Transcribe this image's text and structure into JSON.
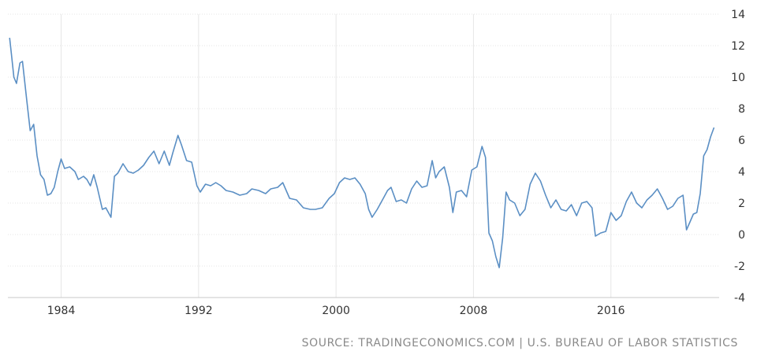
{
  "chart_data": {
    "type": "line",
    "title": "",
    "xlabel": "",
    "ylabel": "",
    "xlim": [
      1980.9,
      2022.3
    ],
    "ylim": [
      -4,
      14
    ],
    "x_ticks": [
      1984,
      1992,
      2000,
      2008,
      2016
    ],
    "x_tick_labels": [
      "1984",
      "1992",
      "2000",
      "2008",
      "2016"
    ],
    "y_ticks": [
      14,
      12,
      10,
      8,
      6,
      4,
      2,
      0,
      -2,
      -4
    ],
    "y_tick_labels": [
      "14",
      "12",
      "10",
      "8",
      "6",
      "4",
      "2",
      "0",
      "-2",
      "-4"
    ],
    "grid": true,
    "legend": "none",
    "line_color": "#5b8fc4",
    "series": [
      {
        "x": [
          1981.0,
          1981.1,
          1981.25,
          1981.4,
          1981.6,
          1981.75,
          1982.0,
          1982.2,
          1982.4,
          1982.6,
          1982.8,
          1983.0,
          1983.2,
          1983.4,
          1983.6,
          1983.8,
          1984.0,
          1984.2,
          1984.5,
          1984.8,
          1985.0,
          1985.3,
          1985.5,
          1985.7,
          1985.9,
          1986.1,
          1986.4,
          1986.6,
          1986.9,
          1987.1,
          1987.3,
          1987.6,
          1987.9,
          1988.2,
          1988.5,
          1988.8,
          1989.1,
          1989.4,
          1989.7,
          1990.0,
          1990.3,
          1990.5,
          1990.8,
          1991.0,
          1991.3,
          1991.6,
          1991.9,
          1992.1,
          1992.4,
          1992.7,
          1993.0,
          1993.3,
          1993.6,
          1994.0,
          1994.4,
          1994.8,
          1995.1,
          1995.5,
          1995.9,
          1996.2,
          1996.6,
          1996.9,
          1997.3,
          1997.7,
          1998.1,
          1998.5,
          1998.8,
          1999.2,
          1999.6,
          1999.9,
          2000.2,
          2000.5,
          2000.8,
          2001.1,
          2001.4,
          2001.7,
          2001.9,
          2002.1,
          2002.4,
          2002.7,
          2003.0,
          2003.2,
          2003.5,
          2003.8,
          2004.1,
          2004.4,
          2004.7,
          2005.0,
          2005.3,
          2005.6,
          2005.8,
          2006.0,
          2006.3,
          2006.6,
          2006.8,
          2007.0,
          2007.3,
          2007.6,
          2007.9,
          2008.2,
          2008.5,
          2008.7,
          2008.9,
          2009.1,
          2009.3,
          2009.5,
          2009.7,
          2009.9,
          2010.1,
          2010.4,
          2010.7,
          2011.0,
          2011.3,
          2011.6,
          2011.9,
          2012.2,
          2012.5,
          2012.8,
          2013.1,
          2013.4,
          2013.7,
          2014.0,
          2014.3,
          2014.6,
          2014.9,
          2015.1,
          2015.4,
          2015.7,
          2016.0,
          2016.3,
          2016.6,
          2016.9,
          2017.2,
          2017.5,
          2017.8,
          2018.1,
          2018.4,
          2018.7,
          2019.0,
          2019.3,
          2019.6,
          2019.9,
          2020.2,
          2020.4,
          2020.6,
          2020.8,
          2021.0,
          2021.2,
          2021.4,
          2021.6,
          2021.8,
          2022.0
        ],
        "values": [
          12.5,
          11.5,
          10.0,
          9.6,
          10.9,
          11.0,
          8.5,
          6.6,
          7.0,
          5.0,
          3.8,
          3.5,
          2.5,
          2.6,
          3.0,
          4.0,
          4.8,
          4.2,
          4.3,
          4.0,
          3.5,
          3.7,
          3.5,
          3.1,
          3.8,
          3.0,
          1.6,
          1.7,
          1.1,
          3.7,
          3.9,
          4.5,
          4.0,
          3.9,
          4.1,
          4.4,
          4.9,
          5.3,
          4.5,
          5.3,
          4.4,
          5.2,
          6.3,
          5.7,
          4.7,
          4.6,
          3.1,
          2.7,
          3.2,
          3.1,
          3.3,
          3.1,
          2.8,
          2.7,
          2.5,
          2.6,
          2.9,
          2.8,
          2.6,
          2.9,
          3.0,
          3.3,
          2.3,
          2.2,
          1.7,
          1.6,
          1.6,
          1.7,
          2.3,
          2.6,
          3.3,
          3.6,
          3.5,
          3.6,
          3.2,
          2.6,
          1.6,
          1.1,
          1.6,
          2.2,
          2.8,
          3.0,
          2.1,
          2.2,
          2.0,
          2.9,
          3.4,
          3.0,
          3.1,
          4.7,
          3.6,
          4.0,
          4.3,
          3.0,
          1.4,
          2.7,
          2.8,
          2.4,
          4.1,
          4.3,
          5.6,
          4.9,
          0.1,
          -0.4,
          -1.4,
          -2.1,
          -0.2,
          2.7,
          2.2,
          2.0,
          1.2,
          1.6,
          3.2,
          3.9,
          3.4,
          2.5,
          1.7,
          2.2,
          1.6,
          1.5,
          1.9,
          1.2,
          2.0,
          2.1,
          1.7,
          -0.1,
          0.1,
          0.2,
          1.4,
          0.9,
          1.2,
          2.1,
          2.7,
          2.0,
          1.7,
          2.2,
          2.5,
          2.9,
          2.3,
          1.6,
          1.8,
          2.3,
          2.5,
          0.3,
          0.8,
          1.3,
          1.4,
          2.6,
          5.0,
          5.4,
          6.2,
          6.8
        ]
      }
    ]
  },
  "source_text": "SOURCE: TRADINGECONOMICS.COM | U.S. BUREAU OF LABOR STATISTICS"
}
